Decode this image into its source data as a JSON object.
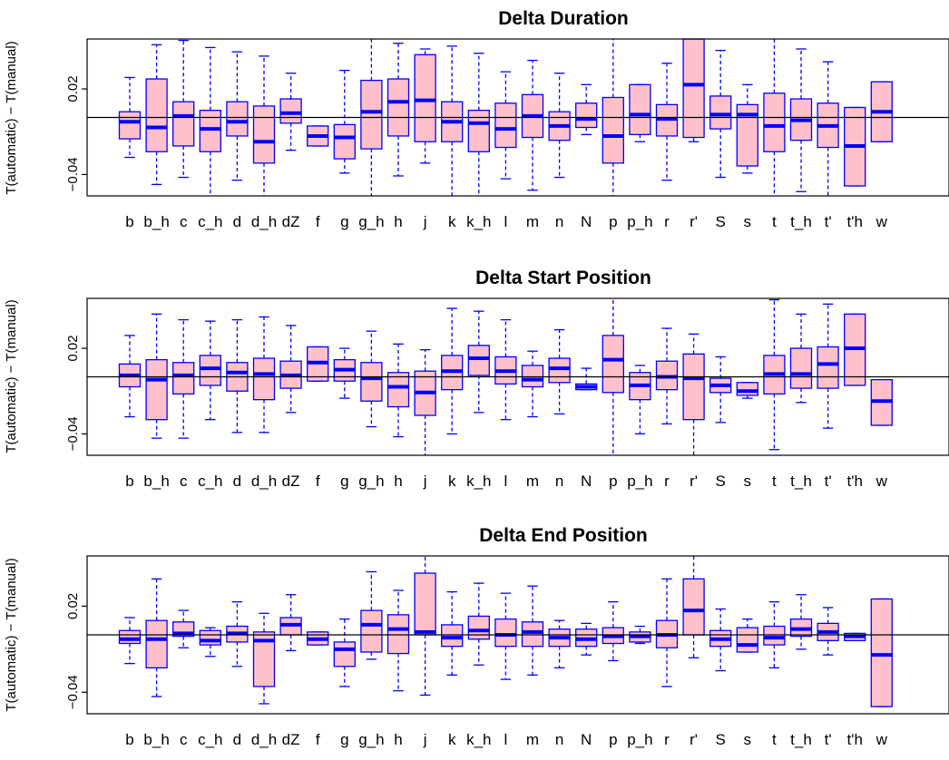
{
  "chart_data": [
    {
      "type": "box",
      "title": "Delta Duration",
      "ylabel": "T(automatic) − T(manual)",
      "ylim": [
        -0.055,
        0.055
      ],
      "yticks": [
        0.02,
        -0.04
      ],
      "ytick_labels": [
        "0.02",
        "−0.04"
      ],
      "reference_line": 0,
      "categories": [
        "b",
        "b_h",
        "c",
        "c_h",
        "d",
        "d_h",
        "dZ",
        "f",
        "g",
        "g_h",
        "h",
        "j",
        "k",
        "k_h",
        "l",
        "m",
        "n",
        "N",
        "p",
        "p_h",
        "r",
        "r'",
        "S",
        "s",
        "t",
        "t_h",
        "t'",
        "t'h",
        "w"
      ],
      "boxes": [
        {
          "whisker_low": -0.028,
          "q1": -0.015,
          "median": -0.003,
          "q3": 0.004,
          "whisker_high": 0.028
        },
        {
          "whisker_low": -0.047,
          "q1": -0.024,
          "median": -0.007,
          "q3": 0.027,
          "whisker_high": 0.051
        },
        {
          "whisker_low": -0.042,
          "q1": -0.02,
          "median": 0.001,
          "q3": 0.011,
          "whisker_high": 0.054
        },
        {
          "whisker_low": -0.055,
          "q1": -0.024,
          "median": -0.008,
          "q3": 0.005,
          "whisker_high": 0.049
        },
        {
          "whisker_low": -0.044,
          "q1": -0.013,
          "median": -0.003,
          "q3": 0.011,
          "whisker_high": 0.046
        },
        {
          "whisker_low": -0.055,
          "q1": -0.032,
          "median": -0.017,
          "q3": 0.008,
          "whisker_high": 0.043
        },
        {
          "whisker_low": -0.023,
          "q1": -0.004,
          "median": 0.003,
          "q3": 0.013,
          "whisker_high": 0.031
        },
        {
          "whisker_low": -0.02,
          "q1": -0.02,
          "median": -0.013,
          "q3": -0.006,
          "whisker_high": -0.006
        },
        {
          "whisker_low": -0.039,
          "q1": -0.029,
          "median": -0.014,
          "q3": -0.005,
          "whisker_high": 0.033
        },
        {
          "whisker_low": -0.055,
          "q1": -0.022,
          "median": 0.004,
          "q3": 0.026,
          "whisker_high": 0.055
        },
        {
          "whisker_low": -0.041,
          "q1": -0.013,
          "median": 0.011,
          "q3": 0.027,
          "whisker_high": 0.052
        },
        {
          "whisker_low": -0.032,
          "q1": -0.017,
          "median": 0.012,
          "q3": 0.044,
          "whisker_high": 0.048
        },
        {
          "whisker_low": -0.055,
          "q1": -0.017,
          "median": -0.003,
          "q3": 0.011,
          "whisker_high": 0.05
        },
        {
          "whisker_low": -0.055,
          "q1": -0.024,
          "median": -0.004,
          "q3": 0.005,
          "whisker_high": 0.045
        },
        {
          "whisker_low": -0.043,
          "q1": -0.021,
          "median": -0.008,
          "q3": 0.01,
          "whisker_high": 0.032
        },
        {
          "whisker_low": -0.051,
          "q1": -0.014,
          "median": 0.001,
          "q3": 0.016,
          "whisker_high": 0.04
        },
        {
          "whisker_low": -0.042,
          "q1": -0.016,
          "median": -0.006,
          "q3": 0.004,
          "whisker_high": 0.031
        },
        {
          "whisker_low": -0.012,
          "q1": -0.007,
          "median": -0.001,
          "q3": 0.01,
          "whisker_high": 0.023
        },
        {
          "whisker_low": -0.055,
          "q1": -0.032,
          "median": -0.013,
          "q3": 0.014,
          "whisker_high": 0.055
        },
        {
          "whisker_low": -0.017,
          "q1": -0.012,
          "median": 0.002,
          "q3": 0.023,
          "whisker_high": 0.023
        },
        {
          "whisker_low": -0.044,
          "q1": -0.013,
          "median": -0.001,
          "q3": 0.009,
          "whisker_high": 0.038
        },
        {
          "whisker_low": -0.017,
          "q1": -0.014,
          "median": 0.023,
          "q3": 0.055,
          "whisker_high": 0.055
        },
        {
          "whisker_low": -0.042,
          "q1": -0.008,
          "median": 0.002,
          "q3": 0.015,
          "whisker_high": 0.047
        },
        {
          "whisker_low": -0.039,
          "q1": -0.034,
          "median": 0.002,
          "q3": 0.009,
          "whisker_high": 0.023
        },
        {
          "whisker_low": -0.055,
          "q1": -0.024,
          "median": -0.006,
          "q3": 0.017,
          "whisker_high": 0.055
        },
        {
          "whisker_low": -0.052,
          "q1": -0.016,
          "median": -0.002,
          "q3": 0.013,
          "whisker_high": 0.048
        },
        {
          "whisker_low": -0.055,
          "q1": -0.021,
          "median": -0.006,
          "q3": 0.01,
          "whisker_high": 0.039
        },
        {
          "whisker_low": -0.048,
          "q1": -0.048,
          "median": -0.02,
          "q3": 0.007,
          "whisker_high": 0.007
        },
        {
          "whisker_low": -0.017,
          "q1": -0.017,
          "median": 0.004,
          "q3": 0.025,
          "whisker_high": 0.025
        }
      ]
    },
    {
      "type": "box",
      "title": "Delta Start Position",
      "ylabel": "T(automatic) − T(manual)",
      "ylim": [
        -0.055,
        0.055
      ],
      "yticks": [
        0.02,
        -0.04
      ],
      "ytick_labels": [
        "0.02",
        "−0.04"
      ],
      "reference_line": 0,
      "categories": [
        "b",
        "b_h",
        "c",
        "c_h",
        "d",
        "d_h",
        "dZ",
        "f",
        "g",
        "g_h",
        "h",
        "j",
        "k",
        "k_h",
        "l",
        "m",
        "n",
        "N",
        "p",
        "p_h",
        "r",
        "r'",
        "S",
        "s",
        "t",
        "t_h",
        "t'",
        "t'h",
        "w"
      ],
      "boxes": [
        {
          "whisker_low": -0.028,
          "q1": -0.007,
          "median": 0.001,
          "q3": 0.009,
          "whisker_high": 0.029
        },
        {
          "whisker_low": -0.043,
          "q1": -0.03,
          "median": -0.002,
          "q3": 0.012,
          "whisker_high": 0.044
        },
        {
          "whisker_low": -0.043,
          "q1": -0.012,
          "median": 0.001,
          "q3": 0.01,
          "whisker_high": 0.04
        },
        {
          "whisker_low": -0.03,
          "q1": -0.006,
          "median": 0.006,
          "q3": 0.015,
          "whisker_high": 0.039
        },
        {
          "whisker_low": -0.039,
          "q1": -0.01,
          "median": 0.003,
          "q3": 0.01,
          "whisker_high": 0.04
        },
        {
          "whisker_low": -0.039,
          "q1": -0.016,
          "median": 0.002,
          "q3": 0.013,
          "whisker_high": 0.042
        },
        {
          "whisker_low": -0.025,
          "q1": -0.008,
          "median": 0.001,
          "q3": 0.011,
          "whisker_high": 0.036
        },
        {
          "whisker_low": -0.003,
          "q1": -0.003,
          "median": 0.01,
          "q3": 0.021,
          "whisker_high": 0.021
        },
        {
          "whisker_low": -0.015,
          "q1": -0.003,
          "median": 0.005,
          "q3": 0.012,
          "whisker_high": 0.02
        },
        {
          "whisker_low": -0.035,
          "q1": -0.017,
          "median": -0.001,
          "q3": 0.01,
          "whisker_high": 0.032
        },
        {
          "whisker_low": -0.042,
          "q1": -0.021,
          "median": -0.007,
          "q3": 0.003,
          "whisker_high": 0.023
        },
        {
          "whisker_low": -0.055,
          "q1": -0.027,
          "median": -0.011,
          "q3": 0.004,
          "whisker_high": 0.019
        },
        {
          "whisker_low": -0.04,
          "q1": -0.009,
          "median": 0.004,
          "q3": 0.015,
          "whisker_high": 0.048
        },
        {
          "whisker_low": -0.025,
          "q1": 0.001,
          "median": 0.013,
          "q3": 0.022,
          "whisker_high": 0.046
        },
        {
          "whisker_low": -0.03,
          "q1": -0.005,
          "median": 0.004,
          "q3": 0.014,
          "whisker_high": 0.04
        },
        {
          "whisker_low": -0.028,
          "q1": -0.007,
          "median": -0.002,
          "q3": 0.008,
          "whisker_high": 0.018
        },
        {
          "whisker_low": -0.026,
          "q1": -0.004,
          "median": 0.006,
          "q3": 0.013,
          "whisker_high": 0.033
        },
        {
          "whisker_low": -0.009,
          "q1": -0.009,
          "median": -0.007,
          "q3": -0.005,
          "whisker_high": 0.006
        },
        {
          "whisker_low": -0.055,
          "q1": -0.011,
          "median": 0.012,
          "q3": 0.029,
          "whisker_high": 0.055
        },
        {
          "whisker_low": -0.04,
          "q1": -0.016,
          "median": -0.006,
          "q3": 0.003,
          "whisker_high": 0.008
        },
        {
          "whisker_low": -0.033,
          "q1": -0.009,
          "median": 0.0,
          "q3": 0.011,
          "whisker_high": 0.034
        },
        {
          "whisker_low": -0.055,
          "q1": -0.03,
          "median": -0.001,
          "q3": 0.016,
          "whisker_high": 0.03
        },
        {
          "whisker_low": -0.032,
          "q1": -0.011,
          "median": -0.006,
          "q3": -0.001,
          "whisker_high": 0.014
        },
        {
          "whisker_low": -0.015,
          "q1": -0.013,
          "median": -0.01,
          "q3": -0.004,
          "whisker_high": -0.004
        },
        {
          "whisker_low": -0.051,
          "q1": -0.012,
          "median": 0.002,
          "q3": 0.015,
          "whisker_high": 0.054
        },
        {
          "whisker_low": -0.018,
          "q1": -0.008,
          "median": 0.002,
          "q3": 0.02,
          "whisker_high": 0.044
        },
        {
          "whisker_low": -0.036,
          "q1": -0.008,
          "median": 0.009,
          "q3": 0.021,
          "whisker_high": 0.051
        },
        {
          "whisker_low": -0.006,
          "q1": -0.006,
          "median": 0.02,
          "q3": 0.044,
          "whisker_high": 0.044
        },
        {
          "whisker_low": -0.034,
          "q1": -0.034,
          "median": -0.017,
          "q3": -0.002,
          "whisker_high": -0.002
        }
      ]
    },
    {
      "type": "box",
      "title": "Delta End Position",
      "ylabel": "T(automatic) − T(manual)",
      "ylim": [
        -0.055,
        0.055
      ],
      "yticks": [
        0.02,
        -0.04
      ],
      "ytick_labels": [
        "0.02",
        "−0.04"
      ],
      "reference_line": 0,
      "categories": [
        "b",
        "b_h",
        "c",
        "c_h",
        "d",
        "d_h",
        "dZ",
        "f",
        "g",
        "g_h",
        "h",
        "j",
        "k",
        "k_h",
        "l",
        "m",
        "n",
        "N",
        "p",
        "p_h",
        "r",
        "r'",
        "S",
        "s",
        "t",
        "t_h",
        "t'",
        "t'h",
        "w"
      ],
      "boxes": [
        {
          "whisker_low": -0.02,
          "q1": -0.006,
          "median": -0.003,
          "q3": 0.003,
          "whisker_high": 0.012
        },
        {
          "whisker_low": -0.043,
          "q1": -0.023,
          "median": -0.003,
          "q3": 0.01,
          "whisker_high": 0.039
        },
        {
          "whisker_low": -0.009,
          "q1": -0.001,
          "median": 0.001,
          "q3": 0.009,
          "whisker_high": 0.017
        },
        {
          "whisker_low": -0.015,
          "q1": -0.007,
          "median": -0.004,
          "q3": 0.003,
          "whisker_high": 0.005
        },
        {
          "whisker_low": -0.022,
          "q1": -0.005,
          "median": 0.001,
          "q3": 0.006,
          "whisker_high": 0.023
        },
        {
          "whisker_low": -0.048,
          "q1": -0.036,
          "median": -0.004,
          "q3": 0.002,
          "whisker_high": 0.015
        },
        {
          "whisker_low": -0.011,
          "q1": 0.0,
          "median": 0.007,
          "q3": 0.012,
          "whisker_high": 0.028
        },
        {
          "whisker_low": -0.007,
          "q1": -0.007,
          "median": -0.003,
          "q3": 0.002,
          "whisker_high": 0.002
        },
        {
          "whisker_low": -0.036,
          "q1": -0.022,
          "median": -0.01,
          "q3": -0.005,
          "whisker_high": 0.011
        },
        {
          "whisker_low": -0.017,
          "q1": -0.012,
          "median": 0.007,
          "q3": 0.017,
          "whisker_high": 0.044
        },
        {
          "whisker_low": -0.039,
          "q1": -0.013,
          "median": 0.004,
          "q3": 0.014,
          "whisker_high": 0.031
        },
        {
          "whisker_low": -0.042,
          "q1": 0.0,
          "median": 0.002,
          "q3": 0.043,
          "whisker_high": 0.055
        },
        {
          "whisker_low": -0.028,
          "q1": -0.008,
          "median": -0.002,
          "q3": 0.007,
          "whisker_high": 0.03
        },
        {
          "whisker_low": -0.021,
          "q1": -0.003,
          "median": 0.003,
          "q3": 0.013,
          "whisker_high": 0.036
        },
        {
          "whisker_low": -0.031,
          "q1": -0.008,
          "median": 0.0,
          "q3": 0.011,
          "whisker_high": 0.029
        },
        {
          "whisker_low": -0.028,
          "q1": -0.008,
          "median": 0.002,
          "q3": 0.009,
          "whisker_high": 0.034
        },
        {
          "whisker_low": -0.023,
          "q1": -0.008,
          "median": -0.002,
          "q3": 0.004,
          "whisker_high": 0.01
        },
        {
          "whisker_low": -0.014,
          "q1": -0.008,
          "median": -0.003,
          "q3": 0.004,
          "whisker_high": 0.008
        },
        {
          "whisker_low": -0.018,
          "q1": -0.006,
          "median": -0.001,
          "q3": 0.005,
          "whisker_high": 0.023
        },
        {
          "whisker_low": -0.006,
          "q1": -0.005,
          "median": -0.001,
          "q3": 0.002,
          "whisker_high": 0.006
        },
        {
          "whisker_low": -0.036,
          "q1": -0.009,
          "median": 0.0,
          "q3": 0.01,
          "whisker_high": 0.039
        },
        {
          "whisker_low": -0.016,
          "q1": 0.0,
          "median": 0.017,
          "q3": 0.039,
          "whisker_high": 0.055
        },
        {
          "whisker_low": -0.025,
          "q1": -0.008,
          "median": -0.003,
          "q3": 0.003,
          "whisker_high": 0.018
        },
        {
          "whisker_low": -0.012,
          "q1": -0.012,
          "median": -0.007,
          "q3": 0.005,
          "whisker_high": 0.011
        },
        {
          "whisker_low": -0.023,
          "q1": -0.007,
          "median": -0.002,
          "q3": 0.006,
          "whisker_high": 0.023
        },
        {
          "whisker_low": -0.01,
          "q1": -0.001,
          "median": 0.004,
          "q3": 0.011,
          "whisker_high": 0.028
        },
        {
          "whisker_low": -0.014,
          "q1": -0.004,
          "median": 0.002,
          "q3": 0.008,
          "whisker_high": 0.019
        },
        {
          "whisker_low": -0.004,
          "q1": -0.004,
          "median": -0.001,
          "q3": 0.001,
          "whisker_high": 0.001
        },
        {
          "whisker_low": -0.05,
          "q1": -0.05,
          "median": -0.014,
          "q3": 0.025,
          "whisker_high": 0.025
        }
      ]
    }
  ],
  "colors": {
    "box_fill": "#ffc0cb",
    "box_stroke": "#0000ff",
    "reference_line": "#000000"
  }
}
